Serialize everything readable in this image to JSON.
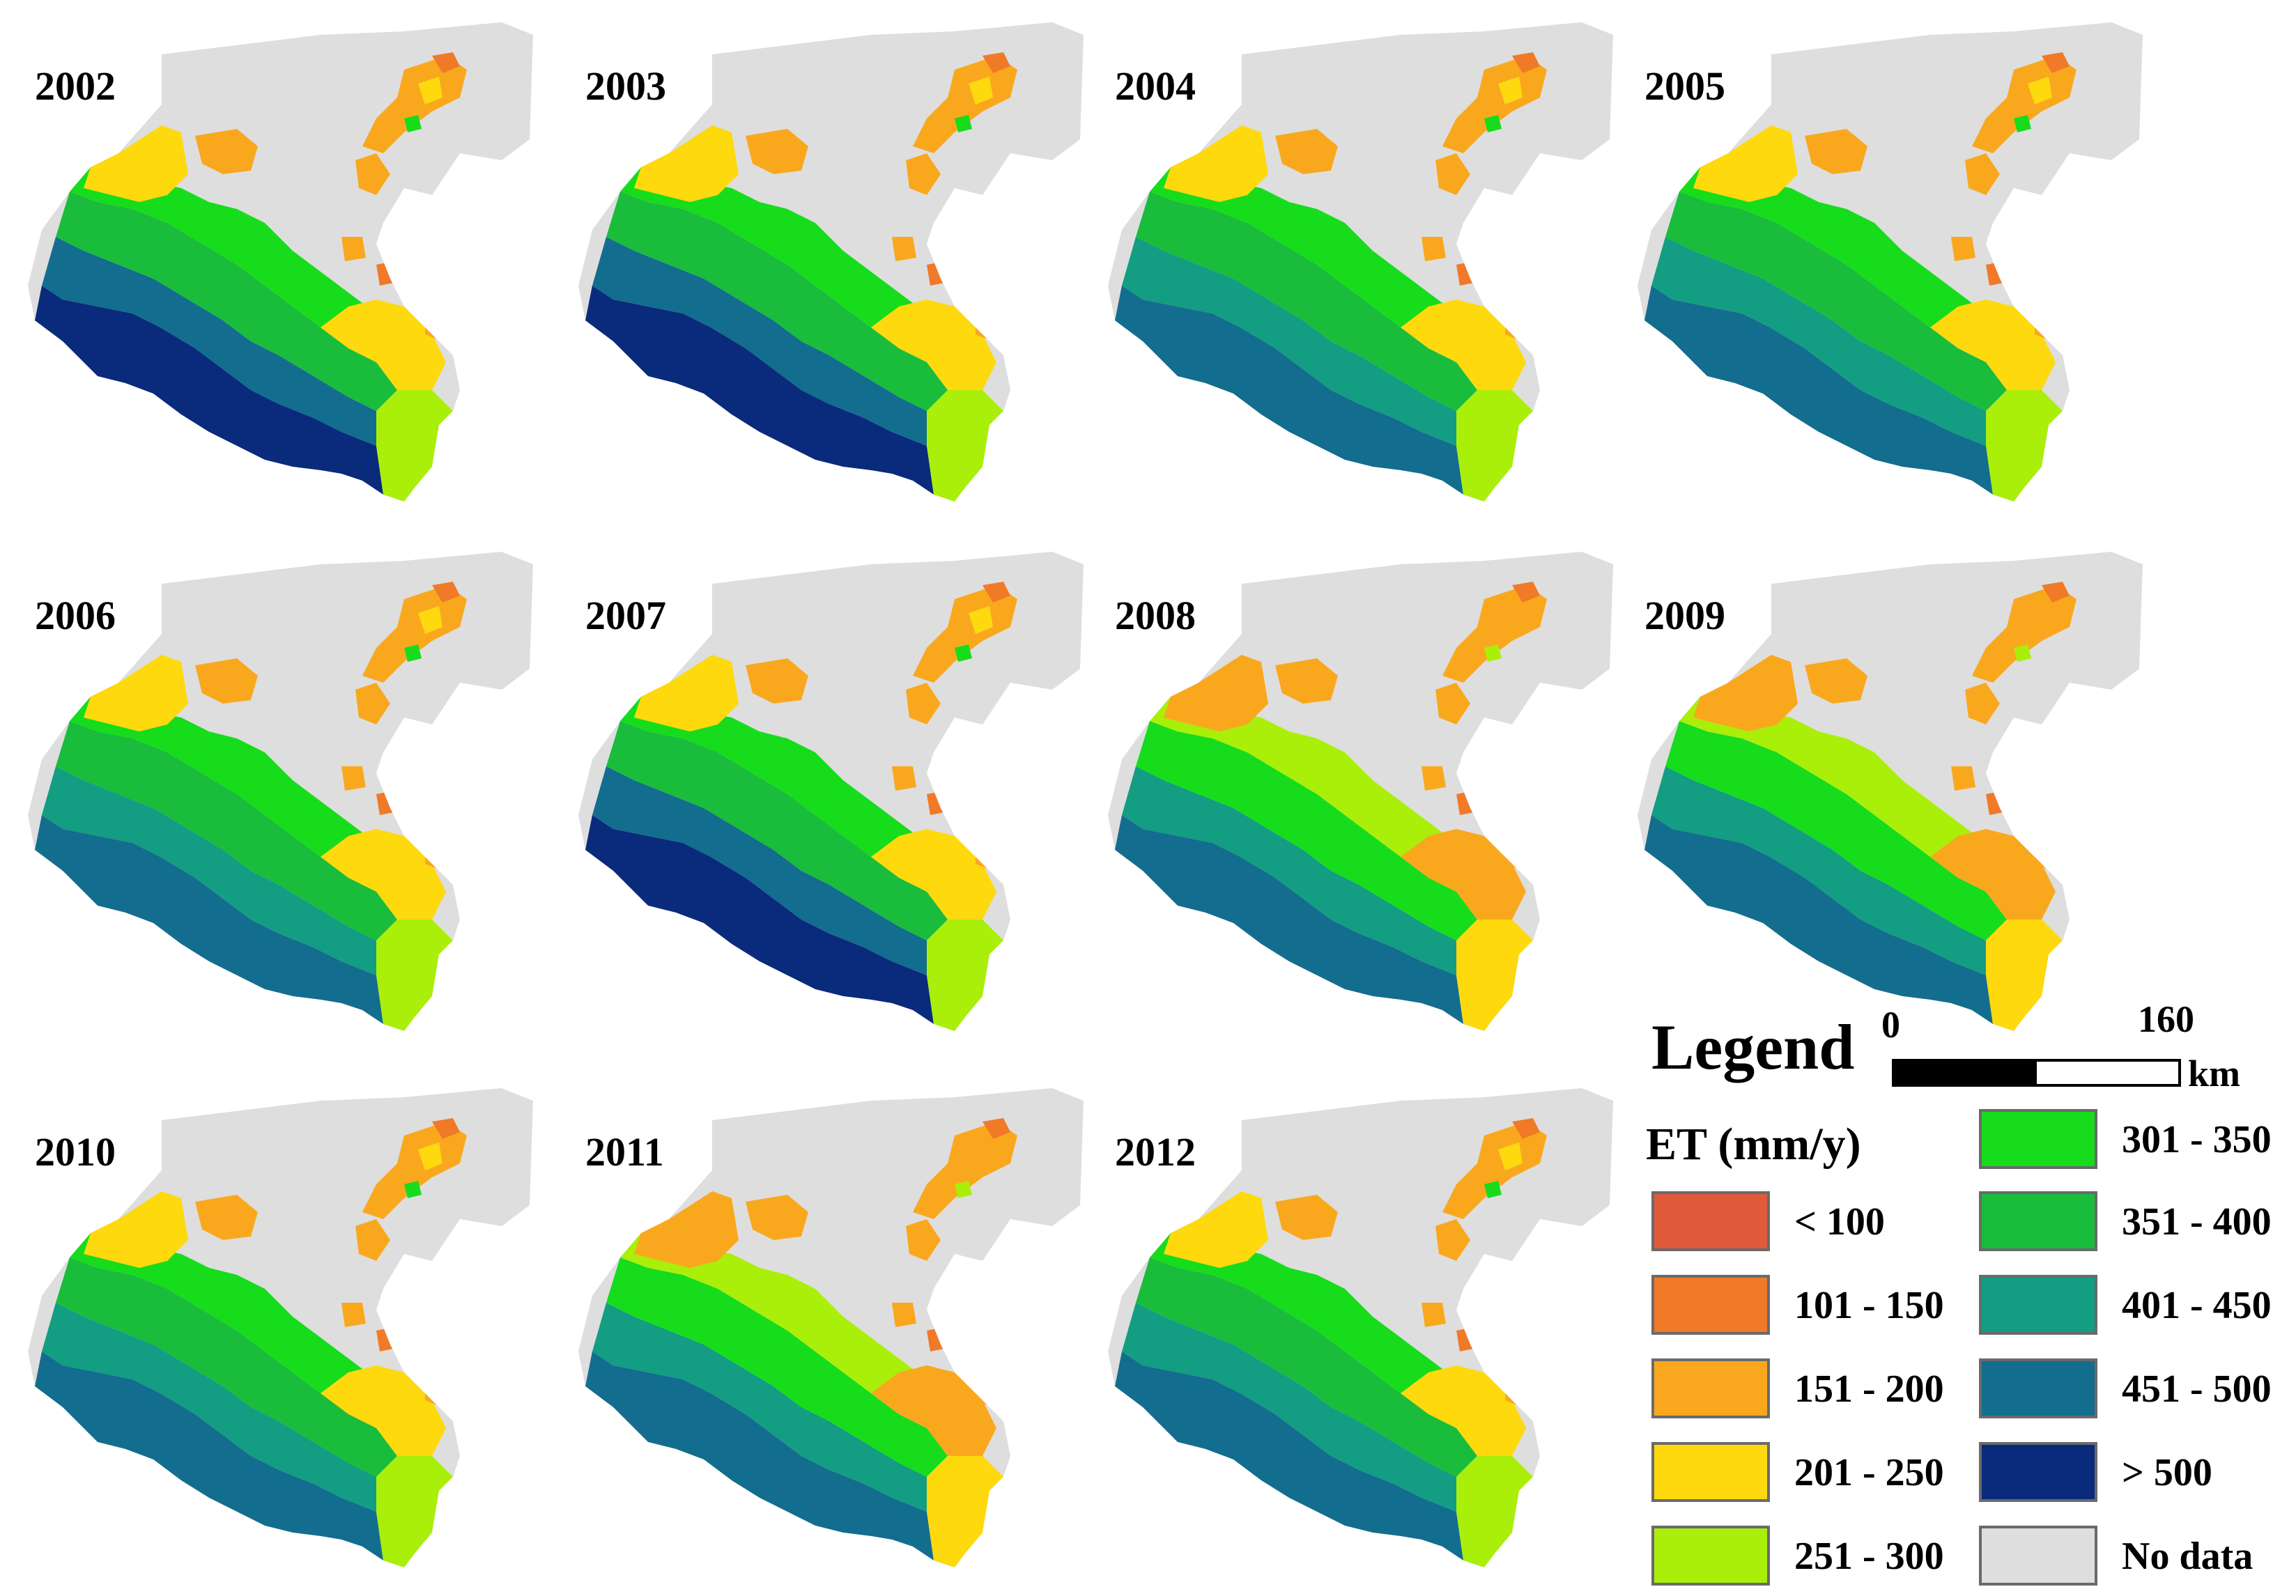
{
  "panels": [
    {
      "year": "2002",
      "variant": "wet"
    },
    {
      "year": "2003",
      "variant": "wet"
    },
    {
      "year": "2004",
      "variant": "mid"
    },
    {
      "year": "2005",
      "variant": "mid"
    },
    {
      "year": "2006",
      "variant": "mid"
    },
    {
      "year": "2007",
      "variant": "wet"
    },
    {
      "year": "2008",
      "variant": "dry"
    },
    {
      "year": "2009",
      "variant": "dry"
    },
    {
      "year": "2010",
      "variant": "mid"
    },
    {
      "year": "2011",
      "variant": "dry"
    },
    {
      "year": "2012",
      "variant": "mid"
    }
  ],
  "legend": {
    "title": "Legend",
    "scale": {
      "start": "0",
      "end": "160",
      "unit": "km"
    },
    "variable_label": "ET (mm/y)",
    "classes": [
      {
        "label": "< 100",
        "color": "#e05a3a"
      },
      {
        "label": "101 - 150",
        "color": "#f07a28"
      },
      {
        "label": "151 - 200",
        "color": "#f9a81e"
      },
      {
        "label": "201 - 250",
        "color": "#fdd90e"
      },
      {
        "label": "251 - 300",
        "color": "#a9ef0a"
      },
      {
        "label": "301 - 350",
        "color": "#16dc1c"
      },
      {
        "label": "351 - 400",
        "color": "#1abc3c"
      },
      {
        "label": "401 - 450",
        "color": "#139d82"
      },
      {
        "label": "451 - 500",
        "color": "#136d8e"
      },
      {
        "label": "> 500",
        "color": "#0a2a7c"
      },
      {
        "label": "No data",
        "color": "#dedede"
      }
    ]
  },
  "colors": {
    "no_data": "#dedede"
  }
}
